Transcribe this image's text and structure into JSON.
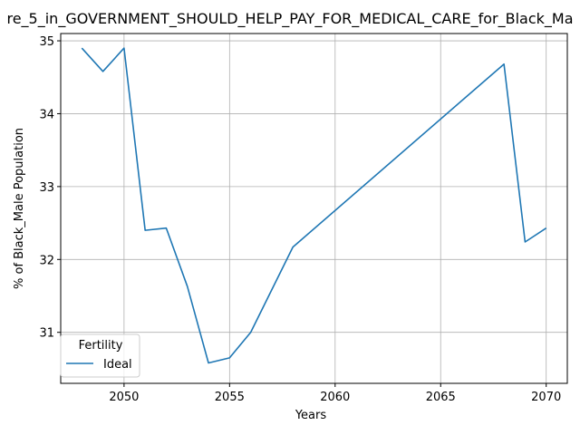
{
  "chart_data": {
    "type": "line",
    "title": "re_5_in_GOVERNMENT_SHOULD_HELP_PAY_FOR_MEDICAL_CARE_for_Black_Ma",
    "xlabel": "Years",
    "ylabel": "% of Black_Male Population",
    "xlim": [
      2047,
      2071
    ],
    "ylim": [
      30.3,
      35.1
    ],
    "x_ticks": [
      2050,
      2055,
      2060,
      2065,
      2070
    ],
    "y_ticks": [
      31,
      32,
      33,
      34,
      35
    ],
    "grid": true,
    "legend": {
      "title": "Fertility",
      "placement": "lower-left"
    },
    "series": [
      {
        "name": "Ideal",
        "color": "#1f77b4",
        "x": [
          2048,
          2049,
          2050,
          2051,
          2052,
          2053,
          2054,
          2055,
          2056,
          2058,
          2068,
          2069,
          2070
        ],
        "y": [
          34.9,
          34.58,
          34.9,
          32.4,
          32.43,
          31.63,
          30.58,
          30.65,
          31.0,
          32.17,
          34.68,
          32.24,
          32.43
        ]
      }
    ]
  }
}
